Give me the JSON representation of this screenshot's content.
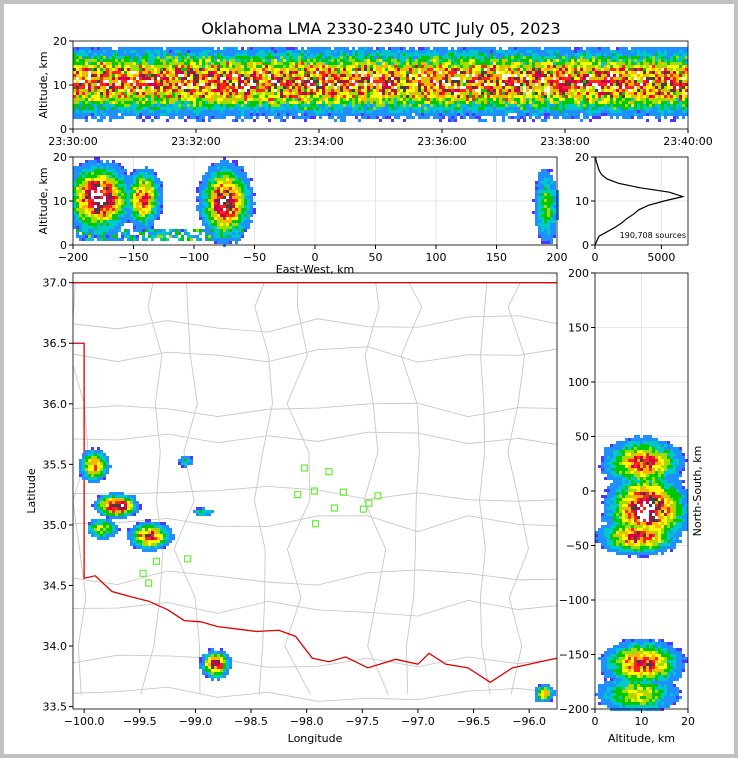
{
  "title": "Oklahoma LMA 2330-2340 UTC July 05, 2023",
  "colors": {
    "background": "#ffffff",
    "border": "#c0c0c0",
    "state_line": "#e00000",
    "county_line": "#c8c8c8",
    "station": "#66ee33",
    "grid": "#e6e6e6",
    "axis": "#000000"
  },
  "chart_data": [
    {
      "panel": "altitude-time",
      "type": "heatmap",
      "xlabel": "",
      "ylabel": "Altitude, km",
      "x_ticks": [
        "23:30:00",
        "23:32:00",
        "23:34:00",
        "23:36:00",
        "23:38:00",
        "23:40:00"
      ],
      "xlim_minutes": [
        0,
        10
      ],
      "y_ticks": [
        0,
        10,
        20
      ],
      "ylim": [
        0,
        20
      ],
      "layer": {
        "core_altitude_km": 11,
        "spread_km": 4,
        "top_km": 20,
        "bottom_km": 2
      }
    },
    {
      "panel": "altitude-eastwest",
      "type": "heatmap",
      "xlabel": "East-West, km",
      "ylabel": "Altitude, km",
      "x_ticks": [
        -200,
        -150,
        -100,
        -50,
        0,
        50,
        100,
        150,
        200
      ],
      "xlim": [
        -200,
        200
      ],
      "y_ticks": [
        0,
        10,
        20
      ],
      "ylim": [
        0,
        20
      ],
      "clusters": [
        {
          "x": -180,
          "z": 11,
          "sx": 14,
          "sz": 4,
          "w": 1.0
        },
        {
          "x": -143,
          "z": 11,
          "sx": 8,
          "sz": 3.5,
          "w": 0.75
        },
        {
          "x": -75,
          "z": 10,
          "sx": 11,
          "sz": 4.5,
          "w": 0.9
        },
        {
          "x": 190,
          "z": 9,
          "sx": 6,
          "sz": 5,
          "w": 0.4
        }
      ]
    },
    {
      "panel": "altitude-histogram",
      "type": "line",
      "xlabel": "",
      "ylabel": "",
      "x_ticks": [
        0,
        5000
      ],
      "xlim": [
        0,
        7000
      ],
      "y_ticks": [
        0,
        10,
        20
      ],
      "ylim": [
        0,
        20
      ],
      "annotation": "190,708 sources",
      "profile": [
        [
          0,
          0
        ],
        [
          2,
          300
        ],
        [
          3,
          900
        ],
        [
          4,
          1500
        ],
        [
          5,
          2000
        ],
        [
          6,
          2400
        ],
        [
          7,
          2900
        ],
        [
          8,
          3300
        ],
        [
          9,
          4000
        ],
        [
          10,
          5200
        ],
        [
          11,
          6600
        ],
        [
          12,
          5600
        ],
        [
          13,
          3400
        ],
        [
          14,
          1800
        ],
        [
          15,
          900
        ],
        [
          16,
          500
        ],
        [
          17,
          300
        ],
        [
          18,
          200
        ],
        [
          19,
          100
        ],
        [
          20,
          40
        ]
      ]
    },
    {
      "panel": "plan-view",
      "type": "scatter",
      "xlabel": "Longitude",
      "ylabel": "Latitude",
      "x_ticks": [
        "-100.0",
        "-99.5",
        "-99.0",
        "-98.5",
        "-98.0",
        "-97.5",
        "-97.0",
        "-96.5",
        "-96.0"
      ],
      "xlim": [
        -100.1,
        -95.75
      ],
      "y_ticks": [
        "33.5",
        "34.0",
        "34.5",
        "35.0",
        "35.5",
        "36.0",
        "36.5",
        "37.0"
      ],
      "ylim": [
        33.48,
        37.08
      ],
      "stations": [
        [
          -98.02,
          35.47
        ],
        [
          -97.8,
          35.44
        ],
        [
          -97.93,
          35.28
        ],
        [
          -97.67,
          35.27
        ],
        [
          -98.08,
          35.25
        ],
        [
          -97.36,
          35.24
        ],
        [
          -97.44,
          35.18
        ],
        [
          -97.75,
          35.14
        ],
        [
          -97.49,
          35.13
        ],
        [
          -97.92,
          35.01
        ],
        [
          -99.07,
          34.72
        ],
        [
          -99.35,
          34.7
        ],
        [
          -99.47,
          34.6
        ],
        [
          -99.42,
          34.52
        ]
      ],
      "clusters": [
        {
          "lon": -99.92,
          "lat": 35.5,
          "sx": 0.07,
          "sy": 0.07,
          "w": 0.7
        },
        {
          "lon": -99.72,
          "lat": 35.17,
          "sx": 0.1,
          "sy": 0.05,
          "w": 1.0
        },
        {
          "lon": -99.42,
          "lat": 34.92,
          "sx": 0.1,
          "sy": 0.06,
          "w": 0.8
        },
        {
          "lon": -99.85,
          "lat": 34.98,
          "sx": 0.08,
          "sy": 0.05,
          "w": 0.5
        },
        {
          "lon": -98.83,
          "lat": 33.86,
          "sx": 0.07,
          "sy": 0.06,
          "w": 0.85
        },
        {
          "lon": -99.1,
          "lat": 35.54,
          "sx": 0.04,
          "sy": 0.03,
          "w": 0.3
        },
        {
          "lon": -98.95,
          "lat": 35.12,
          "sx": 0.06,
          "sy": 0.02,
          "w": 0.3
        },
        {
          "lon": -95.88,
          "lat": 33.62,
          "sx": 0.05,
          "sy": 0.04,
          "w": 0.6
        }
      ]
    },
    {
      "panel": "northsouth-altitude",
      "type": "heatmap",
      "xlabel": "Altitude, km",
      "ylabel": "North-South, km",
      "x_ticks": [
        0,
        10,
        20
      ],
      "xlim": [
        0,
        20
      ],
      "y_ticks": [
        -200,
        -150,
        -100,
        -50,
        0,
        50,
        100,
        150,
        200
      ],
      "ylim": [
        -200,
        200
      ],
      "clusters": [
        {
          "ns": 27,
          "z": 10,
          "sns": 12,
          "sz": 4.5,
          "w": 0.75
        },
        {
          "ns": -15,
          "z": 11,
          "sns": 17,
          "sz": 4.5,
          "w": 1.0
        },
        {
          "ns": -40,
          "z": 9,
          "sns": 9,
          "sz": 4.5,
          "w": 0.8
        },
        {
          "ns": -157,
          "z": 10,
          "sns": 11,
          "sz": 4.5,
          "w": 0.8
        },
        {
          "ns": -185,
          "z": 9,
          "sns": 10,
          "sz": 5,
          "w": 0.5
        }
      ]
    }
  ]
}
